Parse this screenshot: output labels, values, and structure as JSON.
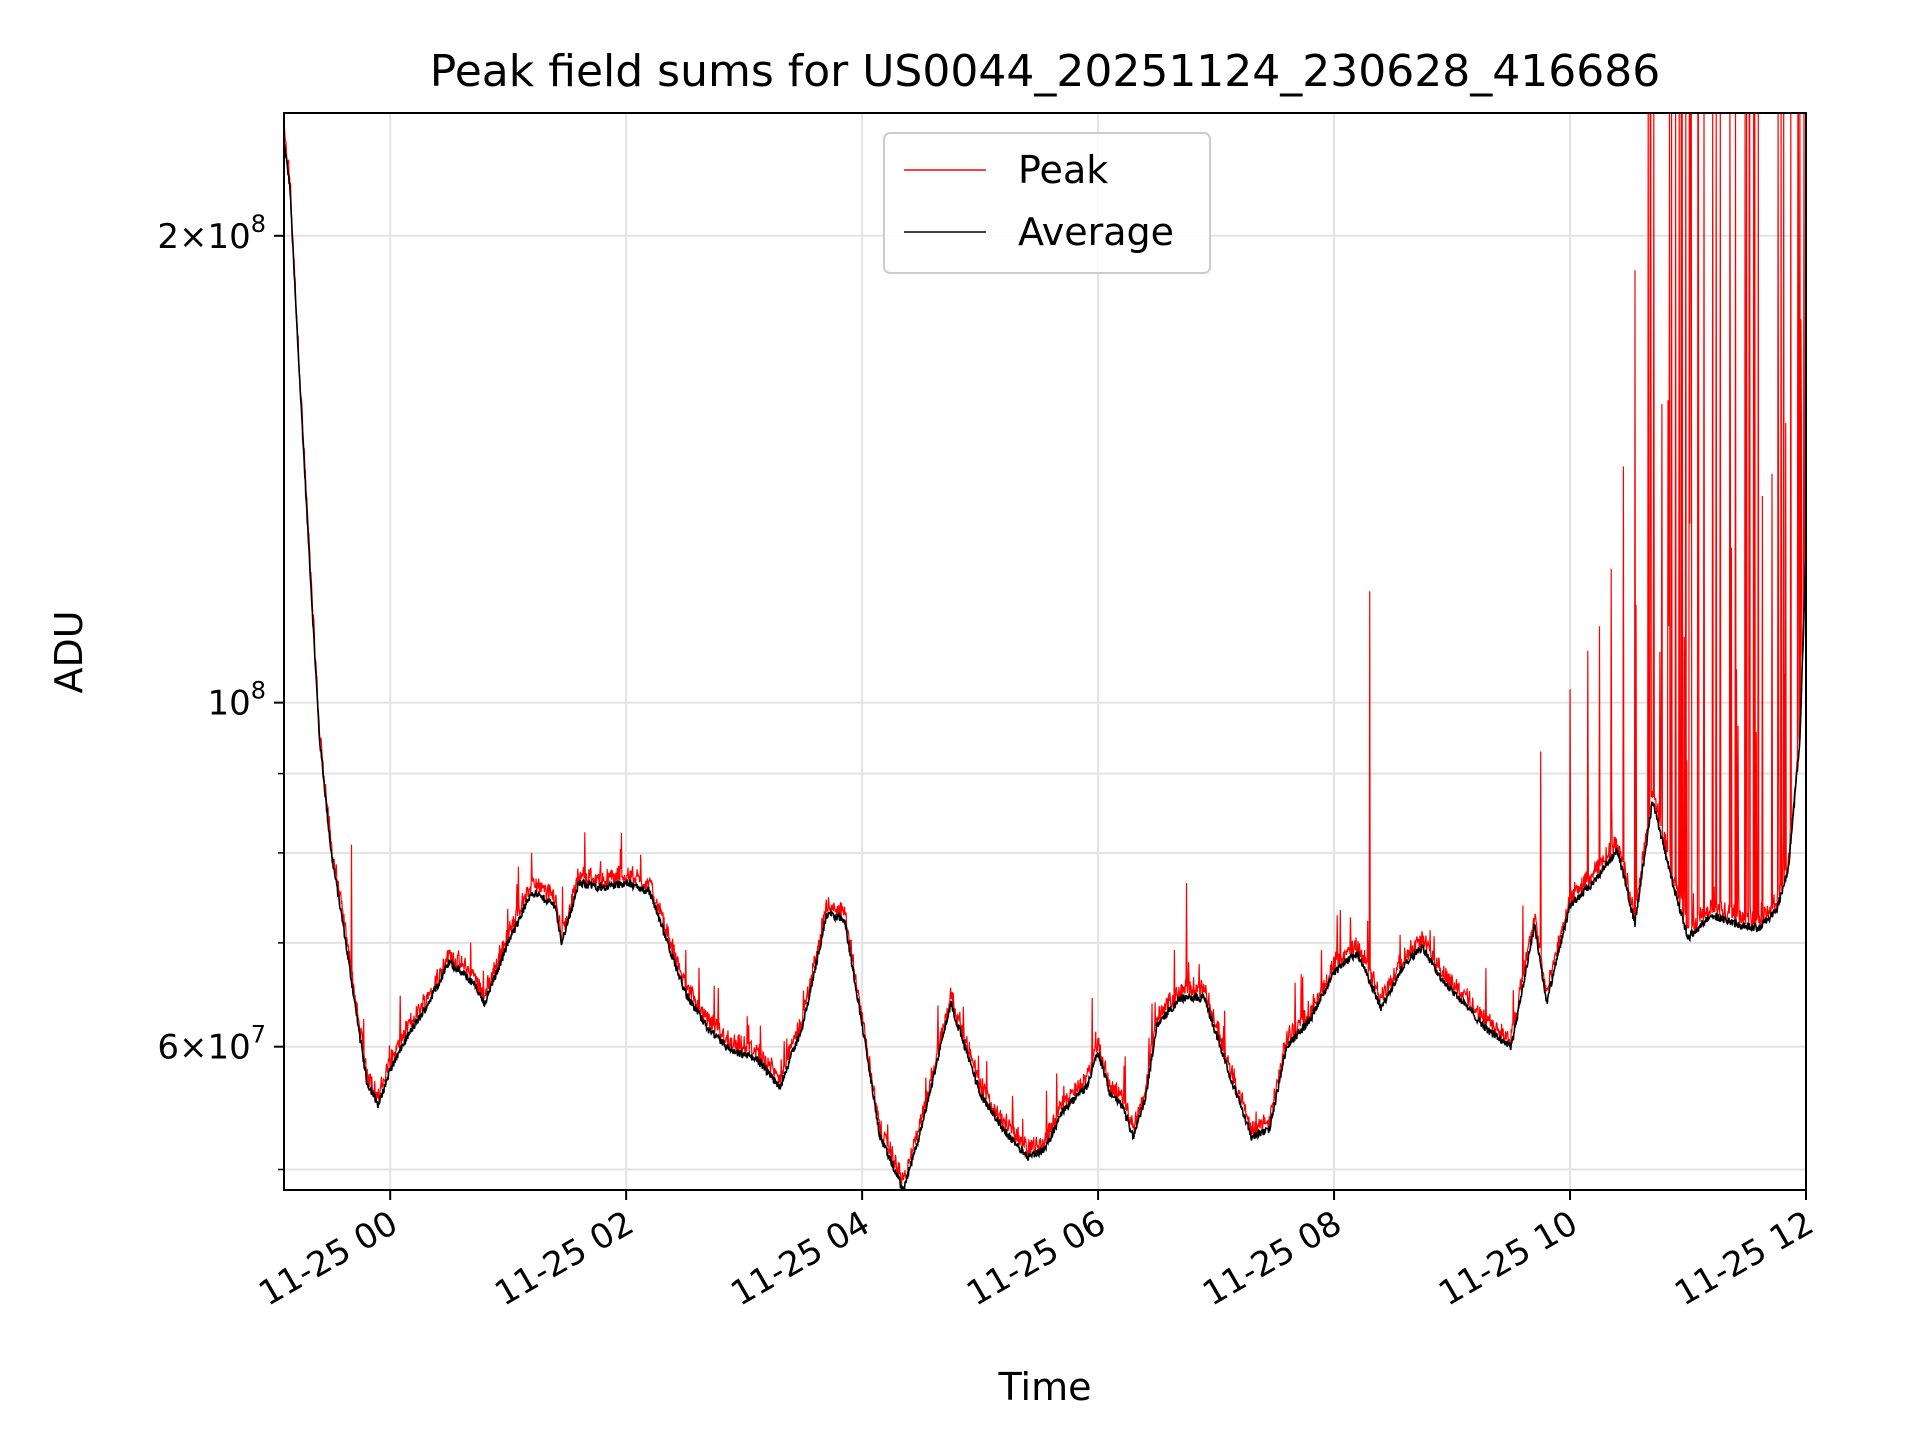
{
  "chart_data": {
    "type": "line",
    "title": "Peak field sums for US0044_20251124_230628_416686",
    "xlabel": "Time",
    "ylabel": "ADU",
    "y_scale": "log",
    "ylim": [
      48500000,
      240000000
    ],
    "xlim_hours": [
      -0.9,
      12.0
    ],
    "grid": true,
    "legend_position": "top-center",
    "x_ticks": [
      {
        "hour": 0,
        "label": "11-25 00"
      },
      {
        "hour": 2,
        "label": "11-25 02"
      },
      {
        "hour": 4,
        "label": "11-25 04"
      },
      {
        "hour": 6,
        "label": "11-25 06"
      },
      {
        "hour": 8,
        "label": "11-25 08"
      },
      {
        "hour": 10,
        "label": "11-25 10"
      },
      {
        "hour": 12,
        "label": "11-25 12"
      }
    ],
    "y_major_ticks": [
      {
        "value": 200000000,
        "mantissa": "2",
        "exponent": "8"
      },
      {
        "value": 100000000,
        "mantissa": "",
        "exponent": "8"
      },
      {
        "value": 60000000,
        "mantissa": "6",
        "exponent": "7"
      }
    ],
    "y_minor_ticks": [
      50000000,
      70000000,
      80000000,
      90000000
    ],
    "series": [
      {
        "name": "Peak",
        "color": "#ff0000"
      },
      {
        "name": "Average",
        "color": "#000000"
      }
    ],
    "average_series": {
      "hours": [
        -0.9,
        -0.85,
        -0.8,
        -0.7,
        -0.6,
        -0.5,
        -0.4,
        -0.3,
        -0.2,
        -0.1,
        0.0,
        0.15,
        0.3,
        0.5,
        0.7,
        0.8,
        1.0,
        1.2,
        1.4,
        1.45,
        1.5,
        1.6,
        1.8,
        2.0,
        2.2,
        2.35,
        2.5,
        2.7,
        2.9,
        3.1,
        3.3,
        3.5,
        3.7,
        3.85,
        4.0,
        4.15,
        4.35,
        4.5,
        4.75,
        5.0,
        5.2,
        5.4,
        5.55,
        5.7,
        5.9,
        6.0,
        6.1,
        6.2,
        6.3,
        6.4,
        6.5,
        6.7,
        6.9,
        7.1,
        7.3,
        7.45,
        7.6,
        7.8,
        8.0,
        8.2,
        8.4,
        8.6,
        8.75,
        8.9,
        9.1,
        9.3,
        9.5,
        9.55,
        9.7,
        9.8,
        10.0,
        10.2,
        10.4,
        10.55,
        10.7,
        10.85,
        11.0,
        11.2,
        11.4,
        11.6,
        11.75,
        11.85,
        11.95,
        12.0
      ],
      "values": [
        230000000,
        215000000,
        180000000,
        130000000,
        95000000,
        80000000,
        72000000,
        64000000,
        57000000,
        55000000,
        58000000,
        61000000,
        63500000,
        68000000,
        66000000,
        64000000,
        70000000,
        75500000,
        74000000,
        70000000,
        72000000,
        76500000,
        76000000,
        76500000,
        75500000,
        70000000,
        65000000,
        61500000,
        59500000,
        59000000,
        56500000,
        62000000,
        73000000,
        72500000,
        62000000,
        52500000,
        48500000,
        53000000,
        64000000,
        56000000,
        53000000,
        51000000,
        51500000,
        54500000,
        56500000,
        59500000,
        56000000,
        55000000,
        52500000,
        55500000,
        62000000,
        64500000,
        64500000,
        58000000,
        52500000,
        53000000,
        60000000,
        62500000,
        67000000,
        69000000,
        63500000,
        68000000,
        69500000,
        66500000,
        64000000,
        61500000,
        60000000,
        62500000,
        72000000,
        64000000,
        74000000,
        76500000,
        80500000,
        72000000,
        86500000,
        77500000,
        70500000,
        73000000,
        72000000,
        71500000,
        73500000,
        78000000,
        95000000,
        125000000
      ]
    }
  }
}
